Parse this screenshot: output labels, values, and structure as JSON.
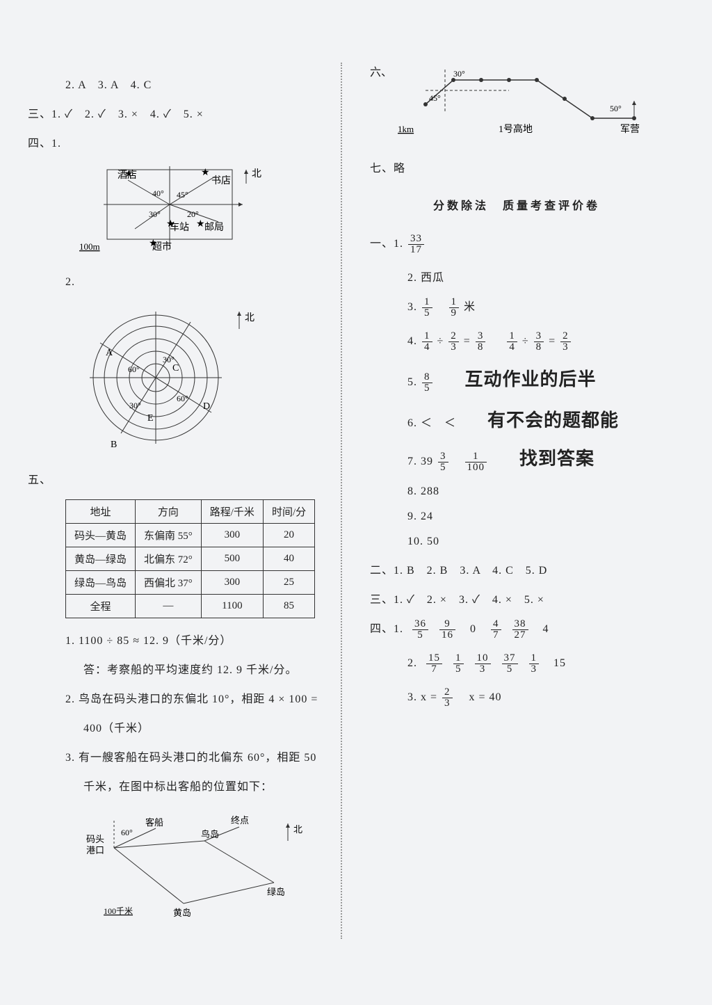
{
  "left": {
    "topline": "2. A　3. A　4. C",
    "san": "三、1. ✓　2. ✓　3. ×　4. ✓　5. ×",
    "si_label": "四、1.",
    "diagram1": {
      "labels": {
        "hotel": "酒店",
        "bookstore": "书店",
        "station": "车站",
        "post": "邮局",
        "market": "超市",
        "north": "北"
      },
      "angles": {
        "a": "40°",
        "b": "45°",
        "c": "30°",
        "d": "20°"
      },
      "scale": "100m",
      "box_stroke": "#333",
      "box_fill": "none",
      "star_color": "#333"
    },
    "si2_label": "2.",
    "diagram2": {
      "points": [
        "A",
        "B",
        "C",
        "D",
        "E"
      ],
      "angles": [
        "30°",
        "60°",
        "30°",
        "60°"
      ],
      "north": "北",
      "circle_stroke": "#333"
    },
    "wu_label": "五、",
    "table": {
      "headers": [
        "地址",
        "方向",
        "路程/千米",
        "时间/分"
      ],
      "rows": [
        [
          "码头—黄岛",
          "东偏南 55°",
          "300",
          "20"
        ],
        [
          "黄岛—绿岛",
          "北偏东 72°",
          "500",
          "40"
        ],
        [
          "绿岛—鸟岛",
          "西偏北 37°",
          "300",
          "25"
        ],
        [
          "全程",
          "—",
          "1100",
          "85"
        ]
      ],
      "border_color": "#333"
    },
    "q1a": "1. 1100 ÷ 85 ≈ 12. 9（千米/分）",
    "q1b": "答：考察船的平均速度约 12. 9 千米/分。",
    "q2a": "2. 鸟岛在码头港口的东偏北 10°，相距 4 × 100 =",
    "q2b": "400（千米）",
    "q3a": "3. 有一艘客船在码头港口的北偏东 60°，相距 50",
    "q3b": "千米，在图中标出客船的位置如下：",
    "diagram3": {
      "labels": {
        "matou": "码头\n港口",
        "kechuan": "客船",
        "niaodao": "鸟岛",
        "zhongdian": "终点",
        "lvdao": "绿岛",
        "huangdao": "黄岛",
        "north": "北",
        "scale": "100千米",
        "angle": "60°"
      },
      "stroke": "#333"
    }
  },
  "right": {
    "liu_label": "六、",
    "diagram_liu": {
      "angles": {
        "a": "30°",
        "b": "45°",
        "c": "50°"
      },
      "labels": {
        "gaodi": "1号高地",
        "junying": "军营",
        "scale": "1km"
      },
      "stroke": "#333"
    },
    "qi": "七、略",
    "title": "分数除法　质量考查评价卷",
    "yi_label": "一、1.",
    "a1": {
      "n": "33",
      "d": "17"
    },
    "a2": "2. 西瓜",
    "a3_label": "3.",
    "a3f1": {
      "n": "1",
      "d": "5"
    },
    "a3f2": {
      "n": "1",
      "d": "9"
    },
    "a3unit": "米",
    "a4_label": "4.",
    "a4_f1": {
      "n": "1",
      "d": "4"
    },
    "a4_op1": "÷",
    "a4_f2": {
      "n": "2",
      "d": "3"
    },
    "a4_eq1": "=",
    "a4_f3": {
      "n": "3",
      "d": "8"
    },
    "a4_sp": "　",
    "a4_f4": {
      "n": "1",
      "d": "4"
    },
    "a4_op2": "÷",
    "a4_f5": {
      "n": "3",
      "d": "8"
    },
    "a4_eq2": "=",
    "a4_f6": {
      "n": "2",
      "d": "3"
    },
    "a5_label": "5.",
    "a5f": {
      "n": "8",
      "d": "5"
    },
    "hw1": "互动作业的后半",
    "a6": "6. ＜　＜",
    "hw2": "有不会的题都能",
    "a7_label": "7. 39",
    "a7f1": {
      "n": "3",
      "d": "5"
    },
    "a7f2": {
      "n": "1",
      "d": "100"
    },
    "hw3": "找到答案",
    "a8": "8. 288",
    "a9": "9. 24",
    "a10": "10. 50",
    "er": "二、1. B　2. B　3. A　4. C　5. D",
    "san2": "三、1. ✓　2. ×　3. ✓　4. ×　5. ×",
    "si2_label": "四、1.",
    "si2_set": [
      {
        "n": "36",
        "d": "5"
      },
      {
        "n": "9",
        "d": "16"
      },
      {
        "txt": "0"
      },
      {
        "n": "4",
        "d": "7"
      },
      {
        "n": "38",
        "d": "27"
      },
      {
        "txt": "4"
      }
    ],
    "si2_2label": "2.",
    "si2_2set": [
      {
        "n": "15",
        "d": "7"
      },
      {
        "n": "1",
        "d": "5"
      },
      {
        "n": "10",
        "d": "3"
      },
      {
        "n": "37",
        "d": "5"
      },
      {
        "n": "1",
        "d": "3"
      },
      {
        "txt": "15"
      }
    ],
    "si2_3label": "3. x =",
    "si2_3f": {
      "n": "2",
      "d": "3"
    },
    "si2_3b": "　x = 40"
  }
}
